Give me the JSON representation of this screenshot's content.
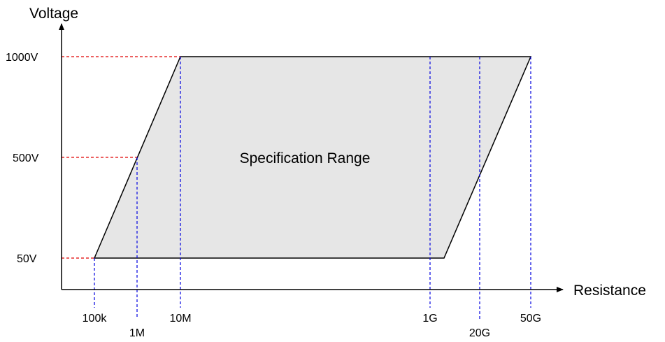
{
  "y_axis": {
    "label": "Voltage",
    "ticks": [
      {
        "id": "50v",
        "label": "50V"
      },
      {
        "id": "500v",
        "label": "500V"
      },
      {
        "id": "1000v",
        "label": "1000V"
      }
    ]
  },
  "x_axis": {
    "label": "Resistance",
    "ticks": [
      {
        "id": "100k",
        "label": "100k"
      },
      {
        "id": "1m",
        "label": "1M"
      },
      {
        "id": "10m",
        "label": "10M"
      },
      {
        "id": "1g",
        "label": "1G"
      },
      {
        "id": "20g",
        "label": "20G"
      },
      {
        "id": "50g",
        "label": "50G"
      }
    ]
  },
  "region": {
    "label": "Specification Range"
  },
  "colors": {
    "region_fill": "#e6e6e6",
    "outline": "#000000",
    "voltage_guides": "#e00000",
    "resistance_guides": "#0000e0"
  }
}
